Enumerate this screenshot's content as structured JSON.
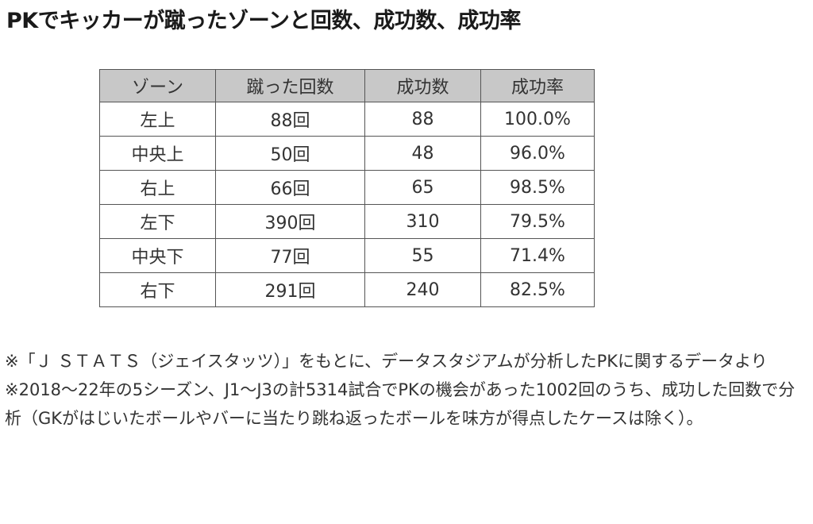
{
  "title": "PKでキッカーが蹴ったゾーンと回数、成功数、成功率",
  "table": {
    "headers": [
      "ゾーン",
      "蹴った回数",
      "成功数",
      "成功率"
    ],
    "rows": [
      [
        "左上",
        "88回",
        "88",
        "100.0%"
      ],
      [
        "中央上",
        "50回",
        "48",
        "96.0%"
      ],
      [
        "右上",
        "66回",
        "65",
        "98.5%"
      ],
      [
        "左下",
        "390回",
        "310",
        "79.5%"
      ],
      [
        "中央下",
        "77回",
        "55",
        "71.4%"
      ],
      [
        "右下",
        "291回",
        "240",
        "82.5%"
      ]
    ]
  },
  "notes": [
    "※「Ｊ ＳＴＡＴＳ（ジェイスタッツ）」をもとに、データスタジアムが分析したPKに関するデータより",
    "※2018〜22年の5シーズン、J1〜J3の計5314試合でPKの機会があった1002回のうち、成功した回数で分析（GKがはじいたボールやバーに当たり跳ね返ったボールを味方が得点したケースは除く）。"
  ]
}
